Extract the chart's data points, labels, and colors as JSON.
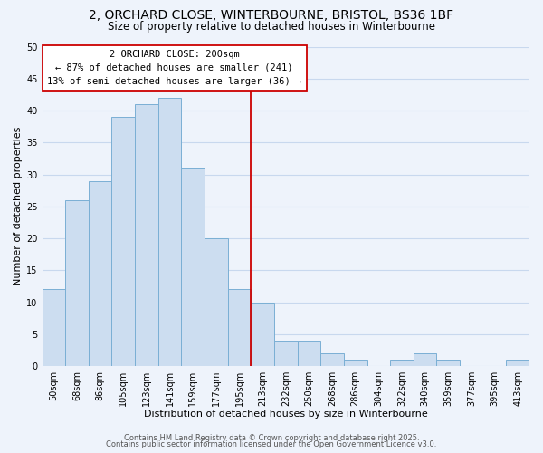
{
  "title": "2, ORCHARD CLOSE, WINTERBOURNE, BRISTOL, BS36 1BF",
  "subtitle": "Size of property relative to detached houses in Winterbourne",
  "xlabel": "Distribution of detached houses by size in Winterbourne",
  "ylabel": "Number of detached properties",
  "bar_labels": [
    "50sqm",
    "68sqm",
    "86sqm",
    "105sqm",
    "123sqm",
    "141sqm",
    "159sqm",
    "177sqm",
    "195sqm",
    "213sqm",
    "232sqm",
    "250sqm",
    "268sqm",
    "286sqm",
    "304sqm",
    "322sqm",
    "340sqm",
    "359sqm",
    "377sqm",
    "395sqm",
    "413sqm"
  ],
  "bar_values": [
    12,
    26,
    29,
    39,
    41,
    42,
    31,
    20,
    12,
    10,
    4,
    4,
    2,
    1,
    0,
    1,
    2,
    1,
    0,
    0,
    1
  ],
  "bar_color": "#ccddf0",
  "bar_edge_color": "#7aafd4",
  "vline_x": 8.5,
  "vline_color": "#cc0000",
  "annotation_text": "2 ORCHARD CLOSE: 200sqm\n← 87% of detached houses are smaller (241)\n13% of semi-detached houses are larger (36) →",
  "annotation_box_color": "#ffffff",
  "annotation_box_edge": "#cc0000",
  "ylim": [
    0,
    50
  ],
  "yticks": [
    0,
    5,
    10,
    15,
    20,
    25,
    30,
    35,
    40,
    45,
    50
  ],
  "grid_color": "#c8d8ee",
  "background_color": "#eef3fb",
  "footer_line1": "Contains HM Land Registry data © Crown copyright and database right 2025.",
  "footer_line2": "Contains public sector information licensed under the Open Government Licence v3.0.",
  "title_fontsize": 10,
  "subtitle_fontsize": 8.5,
  "axis_label_fontsize": 8,
  "tick_fontsize": 7,
  "annotation_fontsize": 7.5,
  "footer_fontsize": 6
}
